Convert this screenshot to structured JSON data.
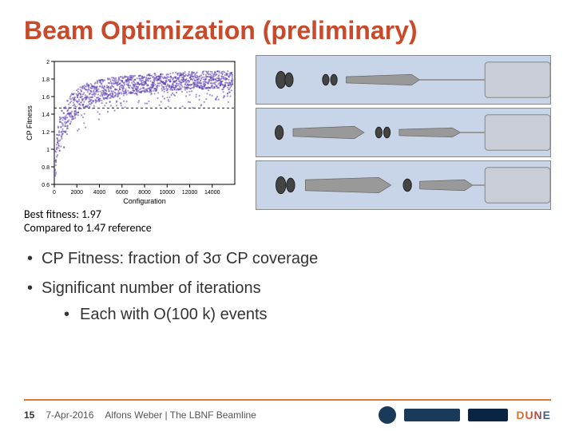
{
  "title": "Beam Optimization (preliminary)",
  "title_color": "#c94a2a",
  "chart": {
    "type": "scatter",
    "xlabel": "Configuration",
    "ylabel": "CP Fitness",
    "xlim": [
      0,
      16000
    ],
    "ylim": [
      0.6,
      2.0
    ],
    "xticks": [
      0,
      2000,
      4000,
      6000,
      8000,
      10000,
      12000,
      14000
    ],
    "xtick_labels": [
      "0",
      "2000",
      "4000",
      "6000",
      "8000",
      "10000",
      "12000",
      "14000"
    ],
    "yticks": [
      0.6,
      0.8,
      1.0,
      1.2,
      1.4,
      1.6,
      1.8,
      2.0
    ],
    "ytick_labels": [
      "0.6",
      "0.8",
      "1",
      "1.2",
      "1.4",
      "1.6",
      "1.8",
      "2"
    ],
    "reference_line_y": 1.47,
    "asymptote_approx": 1.85,
    "half_rise_x": 800,
    "start_y": 0.75,
    "point_color": "#5a3cb0",
    "axis_color": "#000000",
    "label_fontsize": 9,
    "tick_fontsize": 7
  },
  "caption": {
    "line1": "Best fitness: 1.97",
    "line2": "Compared to 1.47 reference"
  },
  "beam_diagrams": {
    "count": 3,
    "panel_bg": "#c8d4e8",
    "tube_color": "#c8cdd6",
    "disk_color": "#444444"
  },
  "bullets": {
    "b1": "CP Fitness: fraction of 3σ CP coverage",
    "b2": "Significant number of iterations",
    "b2a": "Each with O(100 k) events"
  },
  "footer": {
    "page_number": "15",
    "date": "7-Apr-2016",
    "author_text": "Alfons Weber | The LBNF Beamline",
    "accent_color": "#d97b2e",
    "dune_label": "DUNE"
  }
}
